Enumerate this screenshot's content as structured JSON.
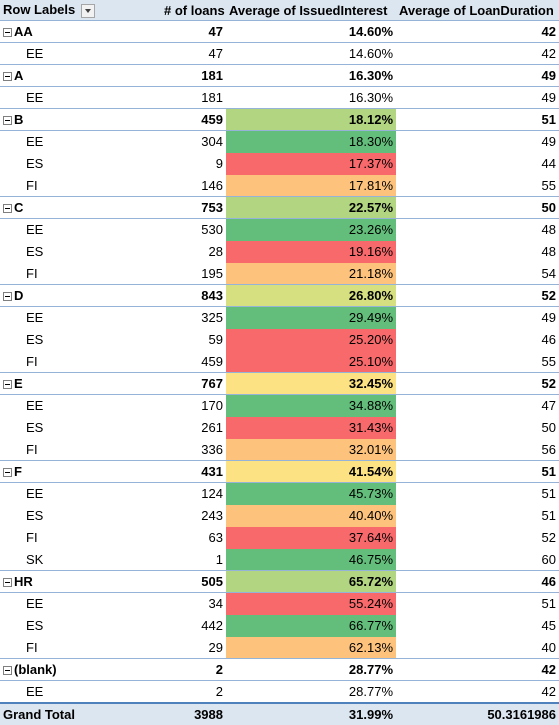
{
  "headers": {
    "row_labels": "Row Labels",
    "num_loans": "# of loans",
    "avg_interest": "Average of IssuedInterest",
    "avg_duration": "Average of LoanDuration"
  },
  "colors": {
    "green": "#63be7b",
    "light_green": "#b1d580",
    "yellow_green": "#d7e081",
    "yellow": "#fde283",
    "orange": "#fdc37d",
    "red": "#f8696b",
    "light_red": "#f98c70"
  },
  "rows": [
    {
      "type": "group",
      "label": "AA",
      "loans": "47",
      "interest": "14.60%",
      "duration": "42",
      "color": ""
    },
    {
      "type": "child",
      "label": "EE",
      "loans": "47",
      "interest": "14.60%",
      "duration": "42",
      "color": ""
    },
    {
      "type": "group",
      "label": "A",
      "loans": "181",
      "interest": "16.30%",
      "duration": "49",
      "color": ""
    },
    {
      "type": "child",
      "label": "EE",
      "loans": "181",
      "interest": "16.30%",
      "duration": "49",
      "color": ""
    },
    {
      "type": "group",
      "label": "B",
      "loans": "459",
      "interest": "18.12%",
      "duration": "51",
      "color": "#b1d580"
    },
    {
      "type": "child",
      "label": "EE",
      "loans": "304",
      "interest": "18.30%",
      "duration": "49",
      "color": "#63be7b"
    },
    {
      "type": "child",
      "label": "ES",
      "loans": "9",
      "interest": "17.37%",
      "duration": "44",
      "color": "#f8696b"
    },
    {
      "type": "child",
      "label": "FI",
      "loans": "146",
      "interest": "17.81%",
      "duration": "55",
      "color": "#fdc37d"
    },
    {
      "type": "group",
      "label": "C",
      "loans": "753",
      "interest": "22.57%",
      "duration": "50",
      "color": "#b1d580"
    },
    {
      "type": "child",
      "label": "EE",
      "loans": "530",
      "interest": "23.26%",
      "duration": "48",
      "color": "#63be7b"
    },
    {
      "type": "child",
      "label": "ES",
      "loans": "28",
      "interest": "19.16%",
      "duration": "48",
      "color": "#f8696b"
    },
    {
      "type": "child",
      "label": "FI",
      "loans": "195",
      "interest": "21.18%",
      "duration": "54",
      "color": "#fdc37d"
    },
    {
      "type": "group",
      "label": "D",
      "loans": "843",
      "interest": "26.80%",
      "duration": "52",
      "color": "#d7e081"
    },
    {
      "type": "child",
      "label": "EE",
      "loans": "325",
      "interest": "29.49%",
      "duration": "49",
      "color": "#63be7b"
    },
    {
      "type": "child",
      "label": "ES",
      "loans": "59",
      "interest": "25.20%",
      "duration": "46",
      "color": "#f8696b"
    },
    {
      "type": "child",
      "label": "FI",
      "loans": "459",
      "interest": "25.10%",
      "duration": "55",
      "color": "#f8696b"
    },
    {
      "type": "group",
      "label": "E",
      "loans": "767",
      "interest": "32.45%",
      "duration": "52",
      "color": "#fde283"
    },
    {
      "type": "child",
      "label": "EE",
      "loans": "170",
      "interest": "34.88%",
      "duration": "47",
      "color": "#63be7b"
    },
    {
      "type": "child",
      "label": "ES",
      "loans": "261",
      "interest": "31.43%",
      "duration": "50",
      "color": "#f8696b"
    },
    {
      "type": "child",
      "label": "FI",
      "loans": "336",
      "interest": "32.01%",
      "duration": "56",
      "color": "#fdc37d"
    },
    {
      "type": "group",
      "label": "F",
      "loans": "431",
      "interest": "41.54%",
      "duration": "51",
      "color": "#fde283"
    },
    {
      "type": "child",
      "label": "EE",
      "loans": "124",
      "interest": "45.73%",
      "duration": "51",
      "color": "#63be7b"
    },
    {
      "type": "child",
      "label": "ES",
      "loans": "243",
      "interest": "40.40%",
      "duration": "51",
      "color": "#fdc37d"
    },
    {
      "type": "child",
      "label": "FI",
      "loans": "63",
      "interest": "37.64%",
      "duration": "52",
      "color": "#f8696b"
    },
    {
      "type": "child",
      "label": "SK",
      "loans": "1",
      "interest": "46.75%",
      "duration": "60",
      "color": "#63be7b"
    },
    {
      "type": "group",
      "label": "HR",
      "loans": "505",
      "interest": "65.72%",
      "duration": "46",
      "color": "#b1d580"
    },
    {
      "type": "child",
      "label": "EE",
      "loans": "34",
      "interest": "55.24%",
      "duration": "51",
      "color": "#f8696b"
    },
    {
      "type": "child",
      "label": "ES",
      "loans": "442",
      "interest": "66.77%",
      "duration": "45",
      "color": "#63be7b"
    },
    {
      "type": "child",
      "label": "FI",
      "loans": "29",
      "interest": "62.13%",
      "duration": "40",
      "color": "#fdc37d"
    },
    {
      "type": "group",
      "label": "(blank)",
      "loans": "2",
      "interest": "28.77%",
      "duration": "42",
      "color": ""
    },
    {
      "type": "child",
      "label": "EE",
      "loans": "2",
      "interest": "28.77%",
      "duration": "42",
      "color": ""
    }
  ],
  "grand_total": {
    "label": "Grand Total",
    "loans": "3988",
    "interest": "31.99%",
    "duration": "50.3161986"
  }
}
